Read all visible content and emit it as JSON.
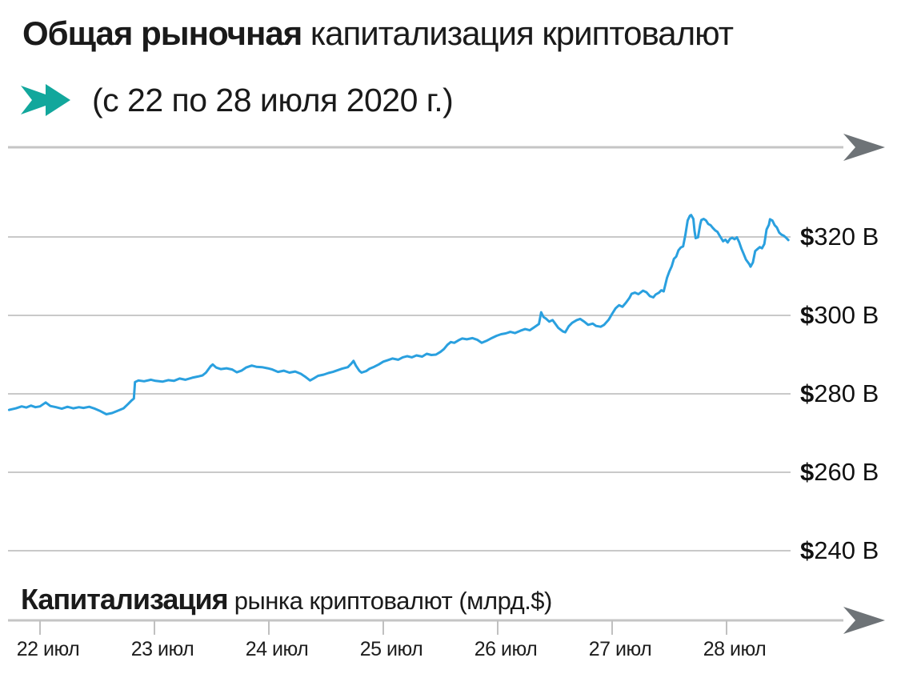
{
  "header": {
    "title_bold": "Общая рыночная",
    "title_rest": " капитализация криптовалют",
    "subtitle": "(с 22 по 28 июля 2020 г.)"
  },
  "footer": {
    "axis_label_bold": "Капитализация",
    "axis_label_rest": " рынка криптовалют (млрд.$)"
  },
  "icons": {
    "subtitle_arrow": "teal-block-arrow-right",
    "axis_arrowhead": "gray-concave-arrowhead-right"
  },
  "colors": {
    "line": "#2aa0df",
    "accent_arrow": "#12a79c",
    "grid": "#c9c9c9",
    "axis": "#c5c5c5",
    "arrowhead": "#6e7377",
    "tick": "#c0c0c0",
    "text": "#1a1a1a"
  },
  "chart_data": {
    "type": "line",
    "title": "Общая рыночная капитализация криптовалют (с 22 по 28 июля 2020 г.)",
    "xlabel": "",
    "ylabel": "Капитализация рынка криптовалют (млрд.$)",
    "legend_position": "none",
    "grid": "horizontal-only",
    "ylim": [
      236,
      330
    ],
    "xlim_days_from_jul22": [
      -0.35,
      7.05
    ],
    "y_ticks": [
      {
        "value": 320,
        "label": "$320 B"
      },
      {
        "value": 300,
        "label": "$300 B"
      },
      {
        "value": 280,
        "label": "$280 B"
      },
      {
        "value": 260,
        "label": "$260 B"
      },
      {
        "value": 240,
        "label": "$240 B"
      }
    ],
    "x_ticks": [
      {
        "day": 0,
        "label": "22 июл"
      },
      {
        "day": 1,
        "label": "23 июл"
      },
      {
        "day": 2,
        "label": "24 июл"
      },
      {
        "day": 3,
        "label": "25 июл"
      },
      {
        "day": 4,
        "label": "26 июл"
      },
      {
        "day": 5,
        "label": "27 июл"
      },
      {
        "day": 6,
        "label": "28 июл"
      }
    ],
    "series": [
      {
        "name": "Общая рыночная капитализация криптовалют, млрд $",
        "points": [
          [
            -0.27,
            275.9
          ],
          [
            -0.21,
            276.3
          ],
          [
            -0.16,
            276.8
          ],
          [
            -0.12,
            276.5
          ],
          [
            -0.08,
            277.0
          ],
          [
            -0.04,
            276.6
          ],
          [
            0.0,
            276.8
          ],
          [
            0.05,
            277.8
          ],
          [
            0.09,
            276.9
          ],
          [
            0.14,
            276.6
          ],
          [
            0.19,
            276.2
          ],
          [
            0.24,
            276.7
          ],
          [
            0.29,
            276.3
          ],
          [
            0.34,
            276.6
          ],
          [
            0.38,
            276.4
          ],
          [
            0.43,
            276.7
          ],
          [
            0.48,
            276.2
          ],
          [
            0.52,
            275.7
          ],
          [
            0.58,
            274.8
          ],
          [
            0.63,
            275.1
          ],
          [
            0.68,
            275.7
          ],
          [
            0.73,
            276.3
          ],
          [
            0.77,
            277.4
          ],
          [
            0.8,
            278.3
          ],
          [
            0.82,
            278.8
          ],
          [
            0.83,
            283.0
          ],
          [
            0.86,
            283.4
          ],
          [
            0.91,
            283.2
          ],
          [
            0.97,
            283.6
          ],
          [
            1.01,
            283.3
          ],
          [
            1.07,
            283.1
          ],
          [
            1.12,
            283.5
          ],
          [
            1.17,
            283.3
          ],
          [
            1.22,
            283.9
          ],
          [
            1.27,
            283.6
          ],
          [
            1.33,
            284.1
          ],
          [
            1.38,
            284.4
          ],
          [
            1.42,
            284.7
          ],
          [
            1.45,
            285.4
          ],
          [
            1.49,
            287.0
          ],
          [
            1.51,
            287.5
          ],
          [
            1.54,
            286.7
          ],
          [
            1.58,
            286.3
          ],
          [
            1.63,
            286.5
          ],
          [
            1.68,
            286.2
          ],
          [
            1.72,
            285.5
          ],
          [
            1.76,
            285.9
          ],
          [
            1.8,
            286.7
          ],
          [
            1.85,
            287.2
          ],
          [
            1.89,
            286.9
          ],
          [
            1.94,
            286.8
          ],
          [
            1.99,
            286.5
          ],
          [
            2.03,
            286.2
          ],
          [
            2.08,
            285.6
          ],
          [
            2.13,
            285.9
          ],
          [
            2.18,
            285.4
          ],
          [
            2.23,
            285.7
          ],
          [
            2.28,
            285.1
          ],
          [
            2.32,
            284.3
          ],
          [
            2.36,
            283.4
          ],
          [
            2.39,
            283.9
          ],
          [
            2.43,
            284.6
          ],
          [
            2.48,
            284.9
          ],
          [
            2.52,
            285.3
          ],
          [
            2.56,
            285.6
          ],
          [
            2.6,
            286.0
          ],
          [
            2.64,
            286.4
          ],
          [
            2.69,
            286.8
          ],
          [
            2.72,
            287.7
          ],
          [
            2.74,
            288.4
          ],
          [
            2.76,
            287.2
          ],
          [
            2.79,
            285.9
          ],
          [
            2.81,
            285.4
          ],
          [
            2.85,
            285.8
          ],
          [
            2.88,
            286.4
          ],
          [
            2.92,
            286.9
          ],
          [
            2.96,
            287.5
          ],
          [
            3.0,
            288.2
          ],
          [
            3.04,
            288.6
          ],
          [
            3.08,
            289.0
          ],
          [
            3.13,
            288.7
          ],
          [
            3.17,
            289.3
          ],
          [
            3.21,
            289.6
          ],
          [
            3.25,
            289.3
          ],
          [
            3.29,
            289.8
          ],
          [
            3.34,
            289.5
          ],
          [
            3.38,
            290.2
          ],
          [
            3.42,
            289.9
          ],
          [
            3.46,
            290.0
          ],
          [
            3.5,
            290.7
          ],
          [
            3.53,
            291.4
          ],
          [
            3.56,
            292.5
          ],
          [
            3.59,
            293.2
          ],
          [
            3.62,
            293.0
          ],
          [
            3.66,
            293.7
          ],
          [
            3.69,
            294.1
          ],
          [
            3.73,
            293.9
          ],
          [
            3.78,
            294.2
          ],
          [
            3.82,
            293.8
          ],
          [
            3.86,
            293.0
          ],
          [
            3.9,
            293.5
          ],
          [
            3.94,
            294.1
          ],
          [
            3.99,
            294.8
          ],
          [
            4.03,
            295.2
          ],
          [
            4.07,
            295.4
          ],
          [
            4.11,
            295.8
          ],
          [
            4.15,
            295.5
          ],
          [
            4.2,
            296.1
          ],
          [
            4.24,
            296.5
          ],
          [
            4.28,
            296.2
          ],
          [
            4.32,
            297.0
          ],
          [
            4.36,
            297.8
          ],
          [
            4.38,
            300.8
          ],
          [
            4.4,
            299.6
          ],
          [
            4.42,
            299.2
          ],
          [
            4.45,
            298.4
          ],
          [
            4.48,
            298.8
          ],
          [
            4.5,
            298.0
          ],
          [
            4.53,
            296.8
          ],
          [
            4.57,
            295.9
          ],
          [
            4.59,
            295.7
          ],
          [
            4.62,
            297.2
          ],
          [
            4.65,
            298.1
          ],
          [
            4.69,
            298.8
          ],
          [
            4.72,
            299.1
          ],
          [
            4.76,
            298.3
          ],
          [
            4.79,
            297.6
          ],
          [
            4.83,
            297.9
          ],
          [
            4.86,
            297.3
          ],
          [
            4.9,
            297.1
          ],
          [
            4.93,
            297.6
          ],
          [
            4.97,
            298.9
          ],
          [
            5.0,
            300.4
          ],
          [
            5.03,
            301.8
          ],
          [
            5.06,
            302.6
          ],
          [
            5.09,
            302.2
          ],
          [
            5.12,
            303.2
          ],
          [
            5.15,
            304.4
          ],
          [
            5.17,
            305.5
          ],
          [
            5.2,
            305.8
          ],
          [
            5.23,
            305.4
          ],
          [
            5.27,
            306.3
          ],
          [
            5.3,
            305.9
          ],
          [
            5.33,
            304.9
          ],
          [
            5.36,
            304.6
          ],
          [
            5.38,
            305.3
          ],
          [
            5.41,
            305.8
          ],
          [
            5.43,
            306.4
          ],
          [
            5.45,
            306.1
          ],
          [
            5.48,
            309.6
          ],
          [
            5.5,
            311.2
          ],
          [
            5.52,
            312.5
          ],
          [
            5.54,
            314.4
          ],
          [
            5.56,
            315.0
          ],
          [
            5.58,
            316.6
          ],
          [
            5.6,
            317.3
          ],
          [
            5.62,
            317.6
          ],
          [
            5.64,
            320.5
          ],
          [
            5.66,
            324.2
          ],
          [
            5.68,
            325.4
          ],
          [
            5.69,
            325.6
          ],
          [
            5.71,
            324.6
          ],
          [
            5.72,
            321.5
          ],
          [
            5.73,
            319.7
          ],
          [
            5.75,
            319.9
          ],
          [
            5.77,
            323.2
          ],
          [
            5.78,
            324.3
          ],
          [
            5.8,
            324.6
          ],
          [
            5.82,
            324.2
          ],
          [
            5.84,
            323.3
          ],
          [
            5.86,
            323.0
          ],
          [
            5.88,
            322.3
          ],
          [
            5.9,
            321.7
          ],
          [
            5.92,
            321.3
          ],
          [
            5.94,
            320.3
          ],
          [
            5.97,
            318.9
          ],
          [
            5.99,
            319.3
          ],
          [
            6.01,
            318.6
          ],
          [
            6.03,
            319.5
          ],
          [
            6.05,
            319.8
          ],
          [
            6.07,
            319.4
          ],
          [
            6.09,
            319.9
          ],
          [
            6.11,
            318.7
          ],
          [
            6.13,
            317.0
          ],
          [
            6.15,
            315.6
          ],
          [
            6.17,
            314.2
          ],
          [
            6.2,
            313.0
          ],
          [
            6.21,
            312.4
          ],
          [
            6.23,
            313.5
          ],
          [
            6.25,
            316.4
          ],
          [
            6.27,
            316.9
          ],
          [
            6.29,
            317.4
          ],
          [
            6.31,
            317.1
          ],
          [
            6.33,
            318.2
          ],
          [
            6.35,
            321.9
          ],
          [
            6.37,
            323.1
          ],
          [
            6.38,
            324.5
          ],
          [
            6.4,
            324.2
          ],
          [
            6.42,
            323.0
          ],
          [
            6.44,
            322.4
          ],
          [
            6.46,
            321.1
          ],
          [
            6.48,
            320.6
          ],
          [
            6.5,
            320.3
          ],
          [
            6.52,
            319.8
          ],
          [
            6.54,
            319.2
          ]
        ]
      }
    ]
  }
}
